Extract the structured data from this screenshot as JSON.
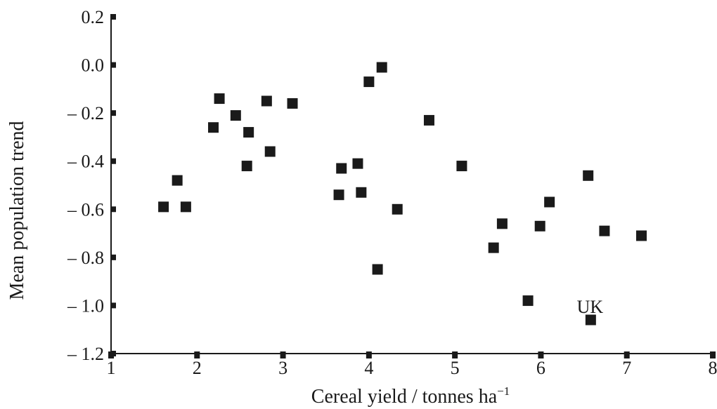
{
  "chart_data": {
    "type": "scatter",
    "title": "",
    "xlabel": "Cereal yield / tonnes ha",
    "xlabel_sup": "−1",
    "ylabel": "Mean population trend",
    "xlim": [
      1,
      8
    ],
    "ylim": [
      -1.2,
      0.2
    ],
    "xticks": [
      1,
      2,
      3,
      4,
      5,
      6,
      7,
      8
    ],
    "xtick_labels": [
      "1",
      "2",
      "3",
      "4",
      "5",
      "6",
      "7",
      "8"
    ],
    "yticks": [
      0.2,
      0.0,
      -0.2,
      -0.4,
      -0.6,
      -0.8,
      -1.0,
      -1.2
    ],
    "ytick_labels": [
      "0.2",
      "0.0",
      "– 0.2",
      "– 0.4",
      "– 0.6",
      "– 0.8",
      "– 1.0",
      "– 1.2"
    ],
    "grid": false,
    "legend": "none",
    "marker": "square",
    "marker_color": "#1a1a1a",
    "points": [
      {
        "x": 1.61,
        "y": -0.59
      },
      {
        "x": 1.77,
        "y": -0.48
      },
      {
        "x": 1.87,
        "y": -0.59
      },
      {
        "x": 2.19,
        "y": -0.26
      },
      {
        "x": 2.26,
        "y": -0.14
      },
      {
        "x": 2.45,
        "y": -0.21
      },
      {
        "x": 2.58,
        "y": -0.42
      },
      {
        "x": 2.6,
        "y": -0.28
      },
      {
        "x": 2.81,
        "y": -0.15
      },
      {
        "x": 2.85,
        "y": -0.36
      },
      {
        "x": 3.11,
        "y": -0.16
      },
      {
        "x": 3.65,
        "y": -0.54
      },
      {
        "x": 3.68,
        "y": -0.43
      },
      {
        "x": 3.87,
        "y": -0.41
      },
      {
        "x": 3.91,
        "y": -0.53
      },
      {
        "x": 4.0,
        "y": -0.07
      },
      {
        "x": 4.1,
        "y": -0.85
      },
      {
        "x": 4.15,
        "y": -0.01
      },
      {
        "x": 4.33,
        "y": -0.6
      },
      {
        "x": 4.7,
        "y": -0.23
      },
      {
        "x": 5.08,
        "y": -0.42
      },
      {
        "x": 5.45,
        "y": -0.76
      },
      {
        "x": 5.55,
        "y": -0.66
      },
      {
        "x": 5.85,
        "y": -0.98
      },
      {
        "x": 5.99,
        "y": -0.67
      },
      {
        "x": 6.1,
        "y": -0.57
      },
      {
        "x": 6.55,
        "y": -0.46
      },
      {
        "x": 6.58,
        "y": -1.06
      },
      {
        "x": 6.74,
        "y": -0.69
      },
      {
        "x": 7.17,
        "y": -0.71
      }
    ],
    "annotations": [
      {
        "text": "UK",
        "x": 6.58,
        "y": -1.06
      }
    ]
  }
}
